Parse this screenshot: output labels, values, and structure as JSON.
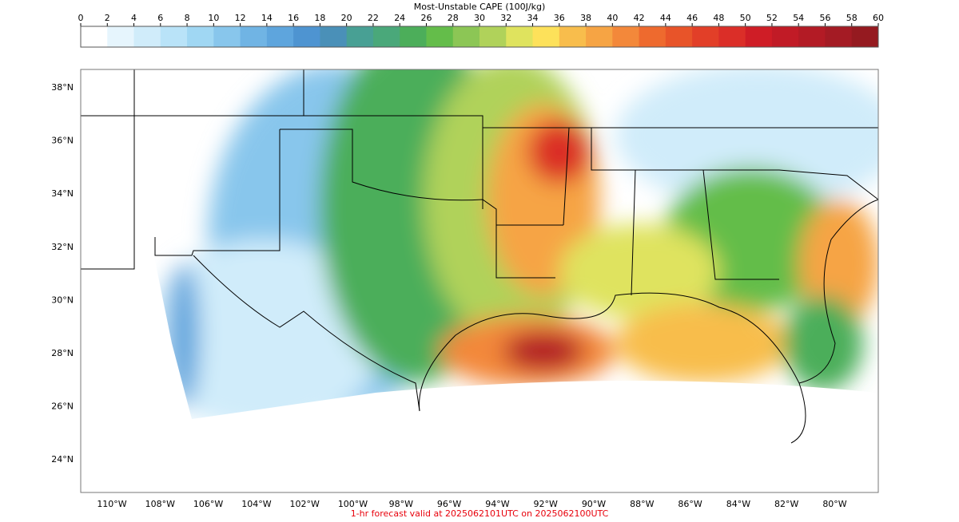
{
  "colorbar": {
    "title": "Most-Unstable CAPE (100J/kg)",
    "ticks": [
      0,
      2,
      4,
      6,
      8,
      10,
      12,
      14,
      16,
      18,
      20,
      22,
      24,
      26,
      28,
      30,
      32,
      34,
      36,
      38,
      40,
      42,
      44,
      46,
      48,
      50,
      52,
      54,
      56,
      58,
      60
    ],
    "colors": [
      "#ffffff",
      "#e6f5fd",
      "#d0ecfa",
      "#b9e3f8",
      "#a0d7f3",
      "#88c6ec",
      "#70b4e4",
      "#5ea5dd",
      "#4e94d1",
      "#4a90b8",
      "#48a094",
      "#4aa87a",
      "#4cae5a",
      "#64bd4a",
      "#8cc655",
      "#b0d25a",
      "#dfe35e",
      "#fde15a",
      "#f8bd4c",
      "#f6a444",
      "#f3883a",
      "#ee6a2e",
      "#e85429",
      "#e23f28",
      "#db2e28",
      "#cf1d26",
      "#c11b26",
      "#b31b25",
      "#a41b24",
      "#951a20"
    ]
  },
  "map": {
    "lat_labels": [
      "38°N",
      "36°N",
      "34°N",
      "32°N",
      "30°N",
      "28°N",
      "26°N",
      "24°N"
    ],
    "lon_labels": [
      "110°W",
      "108°W",
      "106°W",
      "104°W",
      "102°W",
      "100°W",
      "98°W",
      "96°W",
      "94°W",
      "92°W",
      "90°W",
      "88°W",
      "86°W",
      "84°W",
      "82°W",
      "80°W"
    ]
  },
  "footer": "1-hr forecast valid at 2025062101UTC on 2025062100UTC"
}
